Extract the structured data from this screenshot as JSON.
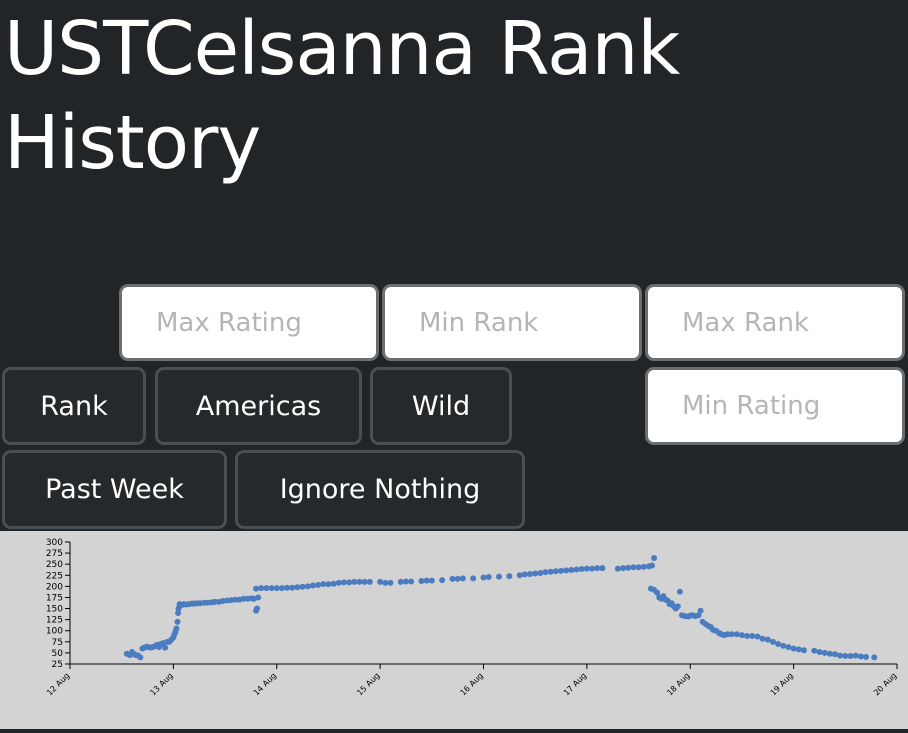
{
  "page": {
    "title_line1": "USTCelsanna Rank",
    "title_line2": "History"
  },
  "filters": {
    "max_rating_placeholder": "Max Rating",
    "min_rank_placeholder": "Min Rank",
    "max_rank_placeholder": "Max Rank",
    "min_rating_placeholder": "Min Rating"
  },
  "buttons": {
    "rank": "Rank",
    "region": "Americas",
    "mode": "Wild",
    "period": "Past Week",
    "ignore": "Ignore Nothing"
  },
  "colors": {
    "background": "#222527",
    "chart_background": "#d3d3d3",
    "point": "#4a7cbf"
  },
  "chart_data": {
    "type": "scatter",
    "ylim": [
      300,
      25
    ],
    "yticks": [
      25,
      50,
      75,
      100,
      125,
      150,
      175,
      200,
      225,
      250,
      275,
      300
    ],
    "xlim": [
      0,
      8
    ],
    "xticks": [
      "12 Aug",
      "13 Aug",
      "14 Aug",
      "15 Aug",
      "16 Aug",
      "17 Aug",
      "18 Aug",
      "19 Aug",
      "20 Aug"
    ],
    "grid": false,
    "points": [
      [
        0.55,
        48
      ],
      [
        0.58,
        45
      ],
      [
        0.6,
        52
      ],
      [
        0.62,
        47
      ],
      [
        0.64,
        45
      ],
      [
        0.66,
        44
      ],
      [
        0.68,
        40
      ],
      [
        0.7,
        60
      ],
      [
        0.72,
        62
      ],
      [
        0.74,
        64
      ],
      [
        0.76,
        63
      ],
      [
        0.78,
        62
      ],
      [
        0.8,
        63
      ],
      [
        0.82,
        65
      ],
      [
        0.84,
        68
      ],
      [
        0.86,
        63
      ],
      [
        0.88,
        70
      ],
      [
        0.9,
        72
      ],
      [
        0.92,
        62
      ],
      [
        0.94,
        75
      ],
      [
        0.96,
        75
      ],
      [
        0.98,
        80
      ],
      [
        1.0,
        85
      ],
      [
        1.01,
        92
      ],
      [
        1.02,
        98
      ],
      [
        1.03,
        105
      ],
      [
        1.04,
        120
      ],
      [
        1.045,
        140
      ],
      [
        1.05,
        150
      ],
      [
        1.06,
        160
      ],
      [
        1.08,
        158
      ],
      [
        1.1,
        160
      ],
      [
        1.12,
        159
      ],
      [
        1.15,
        160
      ],
      [
        1.18,
        161
      ],
      [
        1.2,
        161
      ],
      [
        1.23,
        162
      ],
      [
        1.26,
        162
      ],
      [
        1.3,
        163
      ],
      [
        1.33,
        163
      ],
      [
        1.37,
        164
      ],
      [
        1.4,
        165
      ],
      [
        1.44,
        165
      ],
      [
        1.48,
        167
      ],
      [
        1.52,
        168
      ],
      [
        1.56,
        169
      ],
      [
        1.6,
        170
      ],
      [
        1.64,
        170
      ],
      [
        1.68,
        172
      ],
      [
        1.72,
        172
      ],
      [
        1.76,
        173
      ],
      [
        1.78,
        172
      ],
      [
        1.8,
        145
      ],
      [
        1.81,
        150
      ],
      [
        1.82,
        175
      ],
      [
        1.8,
        195
      ],
      [
        1.85,
        196
      ],
      [
        1.9,
        196
      ],
      [
        1.95,
        196
      ],
      [
        2.0,
        196
      ],
      [
        2.05,
        196
      ],
      [
        2.1,
        197
      ],
      [
        2.15,
        197
      ],
      [
        2.2,
        198
      ],
      [
        2.25,
        199
      ],
      [
        2.3,
        200
      ],
      [
        2.35,
        202
      ],
      [
        2.4,
        203
      ],
      [
        2.45,
        205
      ],
      [
        2.5,
        205
      ],
      [
        2.55,
        206
      ],
      [
        2.6,
        208
      ],
      [
        2.65,
        209
      ],
      [
        2.7,
        209
      ],
      [
        2.75,
        210
      ],
      [
        2.8,
        210
      ],
      [
        2.85,
        210
      ],
      [
        2.9,
        210
      ],
      [
        3.0,
        210
      ],
      [
        3.05,
        208
      ],
      [
        3.1,
        208
      ],
      [
        3.2,
        210
      ],
      [
        3.25,
        211
      ],
      [
        3.3,
        211
      ],
      [
        3.4,
        212
      ],
      [
        3.45,
        213
      ],
      [
        3.5,
        213
      ],
      [
        3.6,
        214
      ],
      [
        3.7,
        217
      ],
      [
        3.75,
        217
      ],
      [
        3.8,
        218
      ],
      [
        3.9,
        218
      ],
      [
        4.0,
        220
      ],
      [
        4.05,
        221
      ],
      [
        4.15,
        222
      ],
      [
        4.25,
        223
      ],
      [
        4.35,
        225
      ],
      [
        4.4,
        227
      ],
      [
        4.45,
        228
      ],
      [
        4.5,
        229
      ],
      [
        4.55,
        230
      ],
      [
        4.6,
        232
      ],
      [
        4.65,
        233
      ],
      [
        4.7,
        234
      ],
      [
        4.75,
        235
      ],
      [
        4.8,
        236
      ],
      [
        4.85,
        237
      ],
      [
        4.9,
        238
      ],
      [
        4.95,
        239
      ],
      [
        5.0,
        240
      ],
      [
        5.05,
        240
      ],
      [
        5.1,
        241
      ],
      [
        5.15,
        241
      ],
      [
        5.3,
        240
      ],
      [
        5.35,
        241
      ],
      [
        5.4,
        242
      ],
      [
        5.45,
        243
      ],
      [
        5.5,
        243
      ],
      [
        5.55,
        244
      ],
      [
        5.6,
        245
      ],
      [
        5.63,
        247
      ],
      [
        5.65,
        264
      ],
      [
        5.62,
        195
      ],
      [
        5.65,
        192
      ],
      [
        5.68,
        186
      ],
      [
        5.7,
        175
      ],
      [
        5.72,
        172
      ],
      [
        5.74,
        178
      ],
      [
        5.76,
        170
      ],
      [
        5.78,
        168
      ],
      [
        5.8,
        160
      ],
      [
        5.82,
        162
      ],
      [
        5.84,
        155
      ],
      [
        5.86,
        150
      ],
      [
        5.88,
        155
      ],
      [
        5.9,
        188
      ],
      [
        5.92,
        135
      ],
      [
        5.95,
        133
      ],
      [
        5.98,
        132
      ],
      [
        6.0,
        134
      ],
      [
        6.02,
        135
      ],
      [
        6.05,
        133
      ],
      [
        6.08,
        135
      ],
      [
        6.1,
        145
      ],
      [
        6.12,
        120
      ],
      [
        6.15,
        115
      ],
      [
        6.18,
        110
      ],
      [
        6.2,
        108
      ],
      [
        6.22,
        102
      ],
      [
        6.25,
        100
      ],
      [
        6.28,
        95
      ],
      [
        6.3,
        92
      ],
      [
        6.33,
        90
      ],
      [
        6.36,
        92
      ],
      [
        6.4,
        92
      ],
      [
        6.45,
        92
      ],
      [
        6.5,
        90
      ],
      [
        6.55,
        88
      ],
      [
        6.6,
        88
      ],
      [
        6.65,
        87
      ],
      [
        6.7,
        82
      ],
      [
        6.75,
        80
      ],
      [
        6.8,
        75
      ],
      [
        6.85,
        70
      ],
      [
        6.9,
        66
      ],
      [
        6.95,
        63
      ],
      [
        7.0,
        60
      ],
      [
        7.05,
        58
      ],
      [
        7.1,
        56
      ],
      [
        7.2,
        55
      ],
      [
        7.25,
        52
      ],
      [
        7.3,
        50
      ],
      [
        7.35,
        48
      ],
      [
        7.4,
        47
      ],
      [
        7.45,
        44
      ],
      [
        7.5,
        43
      ],
      [
        7.55,
        43
      ],
      [
        7.6,
        44
      ],
      [
        7.65,
        42
      ],
      [
        7.7,
        41
      ],
      [
        7.78,
        40
      ]
    ]
  }
}
